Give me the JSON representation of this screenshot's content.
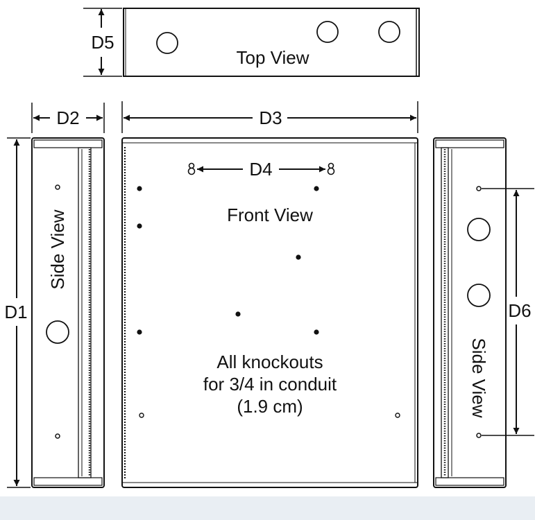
{
  "views": {
    "top": "Top View",
    "front": "Front View",
    "side_left": "Side View",
    "side_right": "Side View"
  },
  "dimensions": {
    "d1": "D1",
    "d2": "D2",
    "d3": "D3",
    "d4": "D4",
    "d5": "D5",
    "d6": "D6"
  },
  "note": {
    "line1": "All knockouts",
    "line2": "for 3/4 in conduit",
    "line3": "(1.9 cm)"
  }
}
